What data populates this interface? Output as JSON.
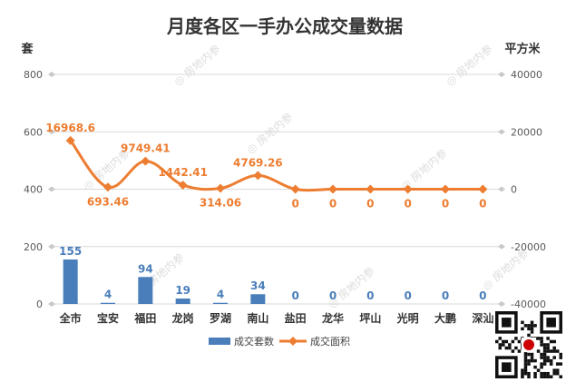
{
  "chart_data": {
    "type": "bar+line",
    "title": "月度各区一手办公成交量数据",
    "categories": [
      "全市",
      "宝安",
      "福田",
      "龙岗",
      "罗湖",
      "南山",
      "盐田",
      "龙华",
      "坪山",
      "光明",
      "大鹏",
      "深汕"
    ],
    "y_left": {
      "label": "套",
      "min": 0,
      "max": 800,
      "ticks": [
        "0",
        "200",
        "400",
        "600",
        "800"
      ]
    },
    "y_right": {
      "label": "平方米",
      "min": -40000,
      "max": 40000,
      "ticks": [
        "-40000",
        "-20000",
        "0",
        "20000",
        "40000"
      ]
    },
    "series": [
      {
        "name": "成交套数",
        "kind": "bar",
        "axis": "left",
        "color": "#4a7ebb",
        "values": [
          155,
          4,
          94,
          19,
          4,
          34,
          0,
          0,
          0,
          0,
          0,
          0
        ],
        "labels": [
          "155",
          "4",
          "94",
          "19",
          "4",
          "34",
          "0",
          "0",
          "0",
          "0",
          "0",
          "0"
        ]
      },
      {
        "name": "成交面积",
        "kind": "line",
        "axis": "right",
        "color": "#ed7d31",
        "values": [
          16968.6,
          693.46,
          9749.41,
          1442.41,
          314.06,
          4769.26,
          0,
          0,
          0,
          0,
          0,
          0
        ],
        "labels": [
          "16968.6",
          "693.46",
          "9749.41",
          "1442.41",
          "314.06",
          "4769.26",
          "0",
          "0",
          "0",
          "0",
          "0",
          "0"
        ]
      }
    ],
    "grid": true,
    "legend": "bottom"
  },
  "watermark": "房地内参",
  "colors": {
    "title": "#333333",
    "axis_text": "#595959",
    "grid": "#d9d9d9"
  }
}
